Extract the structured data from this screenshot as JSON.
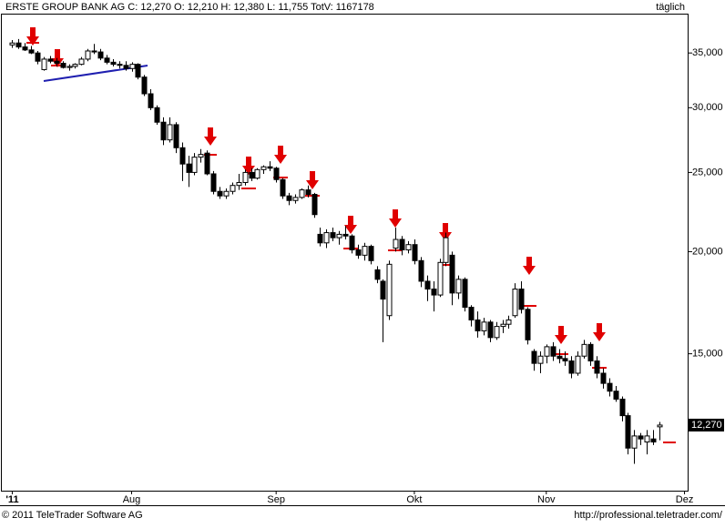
{
  "chart_data": {
    "type": "candlestick",
    "title": "ERSTE GROUP BANK AG C: 12,270 O: 12,210 H: 12,380 L: 11,755 TotV: 1167178",
    "period": "täglich",
    "footer_left": "© 2011 TeleTrader Software AG",
    "footer_right": "http://professional.teletrader.com/",
    "log_y": true,
    "ylim": [
      10200,
      39000
    ],
    "yticks": [
      {
        "value": 15000,
        "label": "15,000"
      },
      {
        "value": 20000,
        "label": "20,000"
      },
      {
        "value": 25000,
        "label": "25,000"
      },
      {
        "value": 30000,
        "label": "30,000"
      },
      {
        "value": 35000,
        "label": "35,000"
      }
    ],
    "last_price": {
      "value": 12270,
      "label": "12,270"
    },
    "categories": [
      "'11",
      null,
      null,
      null,
      null,
      null,
      null,
      null,
      null,
      null,
      null,
      null,
      null,
      null,
      null,
      null,
      null,
      null,
      null,
      "Aug",
      null,
      null,
      null,
      null,
      null,
      null,
      null,
      null,
      null,
      null,
      null,
      null,
      null,
      null,
      null,
      null,
      null,
      null,
      null,
      null,
      null,
      null,
      "Sep",
      null,
      null,
      null,
      null,
      null,
      null,
      null,
      null,
      null,
      null,
      null,
      null,
      null,
      null,
      null,
      null,
      null,
      null,
      null,
      null,
      null,
      "Okt",
      null,
      null,
      null,
      null,
      null,
      null,
      null,
      null,
      null,
      null,
      null,
      null,
      null,
      null,
      null,
      null,
      null,
      null,
      null,
      null,
      "Nov",
      null,
      null,
      null,
      null,
      null,
      null,
      null,
      null,
      null,
      null,
      null,
      null,
      null,
      null,
      null,
      null,
      null,
      null,
      null,
      null,
      null,
      "Dez"
    ],
    "open": [
      35800,
      36000,
      35600,
      35300,
      35000,
      33400,
      34400,
      34200,
      34000,
      33600,
      33700,
      33900,
      34400,
      35200,
      35100,
      34500,
      34100,
      33900,
      33800,
      33500,
      33900,
      32700,
      31200,
      30000,
      28800,
      27400,
      28600,
      26800,
      25600,
      25000,
      26100,
      26400,
      24900,
      23700,
      23400,
      23700,
      24100,
      24300,
      25000,
      24600,
      25200,
      25400,
      25300,
      24500,
      23400,
      23100,
      23300,
      23800,
      23500,
      21000,
      20500,
      21100,
      20800,
      21000,
      20900,
      20100,
      19800,
      20300,
      19000,
      18400,
      16700,
      20200,
      20700,
      20100,
      20400,
      19500,
      18400,
      18000,
      17700,
      19400,
      19800,
      17800,
      18500,
      17100,
      16500,
      16000,
      16400,
      15700,
      16200,
      16300,
      16700,
      18000,
      17000,
      15100,
      14600,
      14900,
      15300,
      14900,
      14800,
      14700,
      14200,
      14900,
      15400,
      14700,
      14200,
      13800,
      13500,
      13200,
      12600,
      11500,
      11900,
      11700,
      11800,
      12210,
      null,
      null,
      null,
      null
    ],
    "high": [
      36300,
      36400,
      36000,
      35700,
      35200,
      34600,
      34700,
      34500,
      34200,
      33900,
      34000,
      34600,
      35400,
      35900,
      35400,
      34800,
      34400,
      34200,
      34200,
      34100,
      34000,
      32900,
      31600,
      30200,
      29200,
      29200,
      28800,
      27200,
      26200,
      26400,
      26700,
      26600,
      25100,
      24000,
      23900,
      24300,
      24900,
      25200,
      25300,
      25300,
      25500,
      25800,
      25400,
      24600,
      23600,
      23500,
      23900,
      24100,
      23600,
      21400,
      21300,
      21400,
      21200,
      21500,
      21000,
      20400,
      20500,
      20400,
      19200,
      18500,
      19500,
      21400,
      20900,
      20600,
      20700,
      19700,
      18700,
      18400,
      19600,
      21100,
      20000,
      18700,
      18600,
      17200,
      16900,
      16600,
      16500,
      16400,
      16500,
      16700,
      18300,
      18400,
      17100,
      15200,
      15100,
      15400,
      15500,
      15200,
      15100,
      14900,
      15100,
      15600,
      15500,
      14900,
      14400,
      14000,
      13700,
      13300,
      12700,
      12100,
      12000,
      12100,
      12100,
      12380,
      null,
      null,
      null,
      null
    ],
    "low": [
      35500,
      35400,
      35200,
      34900,
      33900,
      33300,
      34000,
      33700,
      33500,
      33300,
      33500,
      33800,
      34200,
      34900,
      34300,
      33900,
      33700,
      33500,
      33300,
      33200,
      32500,
      31000,
      29800,
      28600,
      27000,
      27200,
      26400,
      24400,
      24000,
      24800,
      25700,
      24800,
      23500,
      23200,
      23200,
      23500,
      23800,
      24100,
      24400,
      24500,
      24900,
      25100,
      24300,
      23200,
      22800,
      22900,
      23200,
      23300,
      22000,
      20300,
      20200,
      20600,
      20400,
      20700,
      19900,
      19600,
      19500,
      19300,
      18300,
      15500,
      16500,
      20000,
      19800,
      19900,
      19300,
      18100,
      17400,
      16900,
      17600,
      19200,
      17200,
      17500,
      16900,
      16200,
      15700,
      15800,
      15500,
      15600,
      15900,
      16100,
      16600,
      16800,
      15400,
      14300,
      14200,
      14600,
      14700,
      14600,
      14500,
      14000,
      14100,
      14800,
      14500,
      14000,
      13600,
      13300,
      13100,
      12400,
      11300,
      11000,
      11600,
      11300,
      11600,
      11755,
      null,
      null,
      null,
      null
    ],
    "close": [
      36000,
      35600,
      35300,
      35000,
      34200,
      34400,
      34200,
      34000,
      33600,
      33700,
      33900,
      34400,
      35200,
      35100,
      34500,
      34100,
      33900,
      33800,
      33500,
      33900,
      32700,
      31200,
      30000,
      28800,
      27400,
      28600,
      26800,
      25600,
      25000,
      26100,
      26300,
      24900,
      23700,
      23400,
      23700,
      24100,
      24300,
      25000,
      24600,
      25200,
      25400,
      25300,
      24500,
      23400,
      23100,
      23300,
      23800,
      23500,
      22200,
      20500,
      21100,
      20800,
      21000,
      20900,
      20100,
      19800,
      20300,
      19500,
      18500,
      17500,
      19300,
      20700,
      20100,
      20400,
      19500,
      18400,
      18000,
      17700,
      19400,
      20800,
      17800,
      18500,
      17100,
      16500,
      16000,
      16400,
      15700,
      16200,
      16300,
      16500,
      18000,
      17000,
      15600,
      14600,
      14900,
      15300,
      14900,
      14800,
      14700,
      14200,
      14900,
      15400,
      14700,
      14200,
      13800,
      13500,
      13200,
      12600,
      11500,
      11900,
      11800,
      11900,
      11700,
      12270,
      null,
      null,
      null,
      null
    ]
  }
}
